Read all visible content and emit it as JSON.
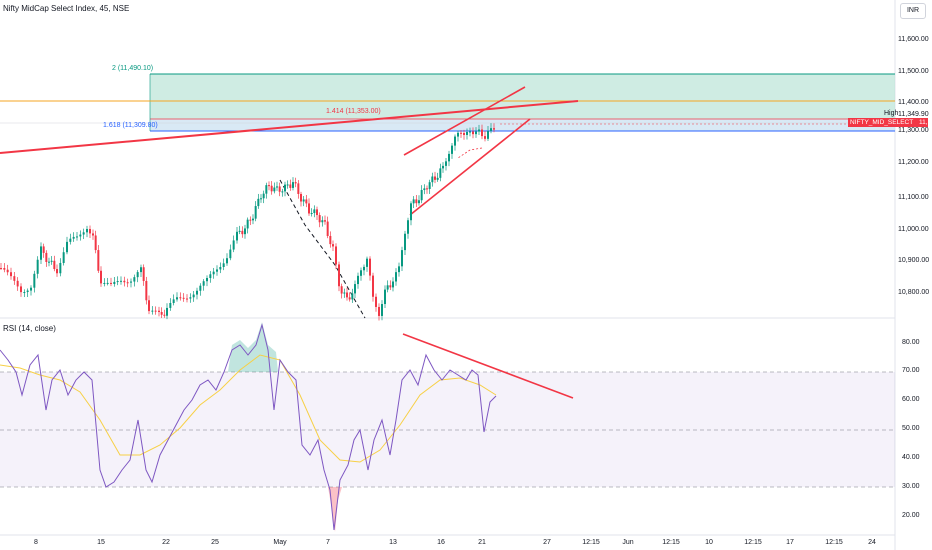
{
  "chart": {
    "title": "Nifty MidCap Select Index, 45, NSE",
    "currency": "INR"
  },
  "rsi": {
    "title": "RSI (14, close)"
  },
  "price_axis": [
    "11,600.00",
    "11,500.00",
    "11,400.00",
    "11,349.90",
    "11,300.00",
    "11,200.00",
    "11,100.00",
    "11,000.00",
    "10,900.00",
    "10,800.00"
  ],
  "rsi_axis": [
    "80.00",
    "70.00",
    "60.00",
    "50.00",
    "40.00",
    "30.00",
    "20.00"
  ],
  "time_axis": [
    "8",
    "15",
    "22",
    "25",
    "May",
    "7",
    "13",
    "16",
    "21",
    "27",
    "12:15",
    "Jun",
    "12:15",
    "10",
    "12:15",
    "17",
    "12:15",
    "24"
  ],
  "fib": {
    "level_2": "2 (11,490.10)",
    "level_1414": "1.414 (11,353.00)",
    "level_1618": "1.618 (11,309.80)"
  },
  "badge": {
    "symbol": "NIFTY_MID_SELECT",
    "price": "11,336.30",
    "high_label": "High"
  },
  "colors": {
    "up": "#089981",
    "down": "#f23645",
    "trend": "#f23645",
    "fib_zone": "#bfe6d9",
    "rsi_line": "#7e57c2",
    "rsi_ma": "#f7d046",
    "orange_line": "#f5a623",
    "blue_line": "#2962ff",
    "green_line": "#089981"
  },
  "chart_data": [
    {
      "type": "candlestick",
      "title": "Nifty MidCap Select Index, 45, NSE",
      "ylim": [
        10760,
        11680
      ],
      "yticks": [
        10800,
        10900,
        11000,
        11100,
        11200,
        11300,
        11349.9,
        11400,
        11500,
        11600
      ],
      "last_price": 11336.3,
      "fib_levels": [
        11490.1,
        11353.0,
        11309.8
      ],
      "anchors": [
        {
          "date": "8",
          "value": 10800
        },
        {
          "date": "15",
          "value": 10950
        },
        {
          "date": "22",
          "value": 10780
        },
        {
          "date": "25",
          "value": 10900
        },
        {
          "date": "May",
          "value": 11150
        },
        {
          "date": "7",
          "value": 10850
        },
        {
          "date": "13",
          "value": 10800
        },
        {
          "date": "16",
          "value": 11280
        },
        {
          "date": "21",
          "value": 11336.3
        }
      ]
    },
    {
      "type": "line",
      "title": "RSI (14, close)",
      "ylim": [
        15,
        85
      ],
      "yticks": [
        80,
        70,
        60,
        50,
        40,
        30,
        20
      ],
      "bands": [
        70,
        50,
        30
      ]
    }
  ]
}
